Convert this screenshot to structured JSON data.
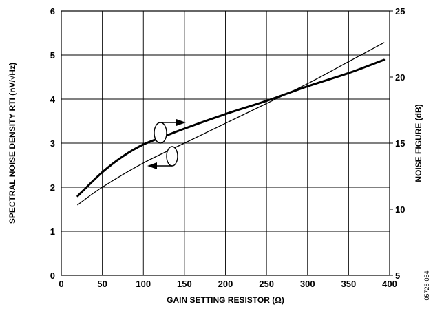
{
  "chart_data": {
    "type": "line",
    "xlabel": "GAIN SETTING RESISTOR (Ω)",
    "ylabel": "SPECTRAL NOISE DENSITY RTI (nV/√Hz)",
    "y2label": "NOISE FIGURE (dB)",
    "xlim": [
      0,
      400
    ],
    "ylim": [
      0,
      6
    ],
    "y2lim": [
      5,
      25
    ],
    "x_ticks": [
      "0",
      "50",
      "100",
      "150",
      "200",
      "250",
      "300",
      "350",
      "400"
    ],
    "y_ticks": [
      "0",
      "1",
      "2",
      "3",
      "4",
      "5",
      "6"
    ],
    "y2_ticks": [
      "5",
      "10",
      "15",
      "20",
      "25"
    ],
    "grid": true,
    "series": [
      {
        "role": "noise-figure",
        "axis": "right",
        "color": "#000000",
        "x": [
          20,
          50,
          75,
          100,
          125,
          150,
          200,
          250,
          300,
          350,
          393
        ],
        "y": [
          11.0,
          12.8,
          14.0,
          14.9,
          15.5,
          16.1,
          17.2,
          18.2,
          19.3,
          20.3,
          21.3
        ]
      },
      {
        "role": "spectral-noise-density",
        "axis": "left",
        "color": "#000000",
        "x": [
          20,
          50,
          100,
          150,
          200,
          250,
          300,
          350,
          393
        ],
        "y": [
          1.6,
          2.0,
          2.55,
          3.0,
          3.45,
          3.9,
          4.35,
          4.85,
          5.28
        ]
      }
    ],
    "annotation_id": "05728-054"
  }
}
